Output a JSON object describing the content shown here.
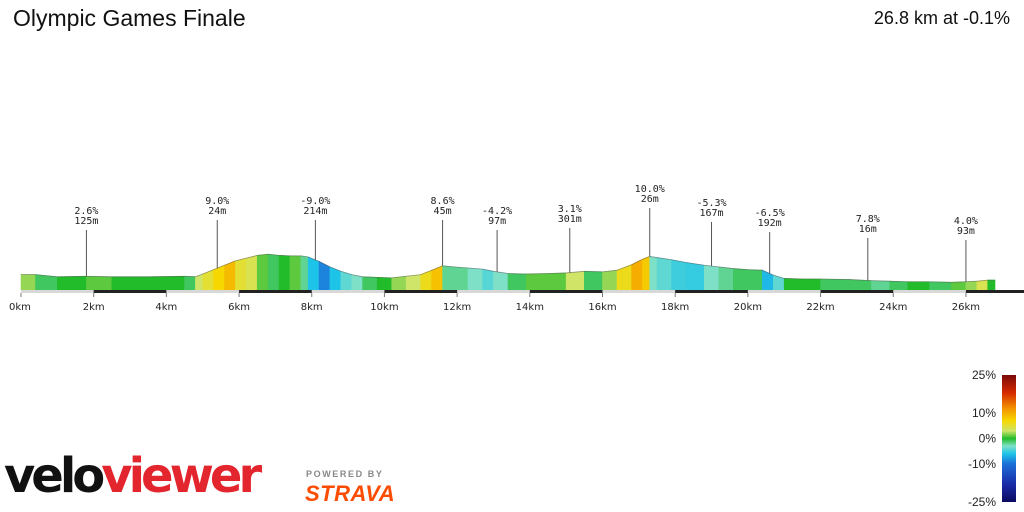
{
  "header": {
    "title": "Olympic Games Finale",
    "summary": "26.8 km at -0.1%"
  },
  "chart_data": {
    "type": "area",
    "title": "Olympic Games Finale",
    "xunit": "km",
    "xlim": [
      0,
      26.8
    ],
    "x_ticks": [
      "0km",
      "2km",
      "4km",
      "6km",
      "8km",
      "10km",
      "12km",
      "14km",
      "16km",
      "18km",
      "20km",
      "22km",
      "24km",
      "26km"
    ],
    "x_tick_values": [
      0,
      2,
      4,
      6,
      8,
      10,
      12,
      14,
      16,
      18,
      20,
      22,
      24,
      26
    ],
    "color_scale": "gradient (%)",
    "profile": [
      {
        "x": 0.0,
        "y": 28
      },
      {
        "x": 0.4,
        "y": 28
      },
      {
        "x": 1.0,
        "y": 24
      },
      {
        "x": 1.8,
        "y": 25
      },
      {
        "x": 2.5,
        "y": 24
      },
      {
        "x": 3.5,
        "y": 24
      },
      {
        "x": 4.5,
        "y": 25
      },
      {
        "x": 4.8,
        "y": 24
      },
      {
        "x": 5.0,
        "y": 29
      },
      {
        "x": 5.3,
        "y": 37
      },
      {
        "x": 5.6,
        "y": 45
      },
      {
        "x": 5.9,
        "y": 53
      },
      {
        "x": 6.2,
        "y": 58
      },
      {
        "x": 6.5,
        "y": 63
      },
      {
        "x": 6.8,
        "y": 65
      },
      {
        "x": 7.1,
        "y": 63
      },
      {
        "x": 7.4,
        "y": 62
      },
      {
        "x": 7.7,
        "y": 62
      },
      {
        "x": 7.9,
        "y": 60
      },
      {
        "x": 8.2,
        "y": 52
      },
      {
        "x": 8.5,
        "y": 42
      },
      {
        "x": 8.8,
        "y": 34
      },
      {
        "x": 9.1,
        "y": 28
      },
      {
        "x": 9.4,
        "y": 24
      },
      {
        "x": 9.8,
        "y": 23
      },
      {
        "x": 10.2,
        "y": 22
      },
      {
        "x": 10.6,
        "y": 25
      },
      {
        "x": 11.0,
        "y": 28
      },
      {
        "x": 11.3,
        "y": 36
      },
      {
        "x": 11.6,
        "y": 44
      },
      {
        "x": 11.9,
        "y": 42
      },
      {
        "x": 12.3,
        "y": 40
      },
      {
        "x": 12.7,
        "y": 38
      },
      {
        "x": 13.0,
        "y": 34
      },
      {
        "x": 13.4,
        "y": 30
      },
      {
        "x": 13.9,
        "y": 29
      },
      {
        "x": 14.5,
        "y": 30
      },
      {
        "x": 15.0,
        "y": 31
      },
      {
        "x": 15.5,
        "y": 34
      },
      {
        "x": 16.0,
        "y": 33
      },
      {
        "x": 16.4,
        "y": 36
      },
      {
        "x": 16.8,
        "y": 46
      },
      {
        "x": 17.1,
        "y": 56
      },
      {
        "x": 17.3,
        "y": 61
      },
      {
        "x": 17.5,
        "y": 59
      },
      {
        "x": 17.9,
        "y": 55
      },
      {
        "x": 18.3,
        "y": 50
      },
      {
        "x": 18.8,
        "y": 45
      },
      {
        "x": 19.2,
        "y": 42
      },
      {
        "x": 19.6,
        "y": 39
      },
      {
        "x": 20.0,
        "y": 37
      },
      {
        "x": 20.4,
        "y": 36
      },
      {
        "x": 20.7,
        "y": 27
      },
      {
        "x": 21.0,
        "y": 21
      },
      {
        "x": 21.5,
        "y": 20
      },
      {
        "x": 22.0,
        "y": 20
      },
      {
        "x": 22.8,
        "y": 19
      },
      {
        "x": 23.4,
        "y": 17
      },
      {
        "x": 23.9,
        "y": 16
      },
      {
        "x": 24.4,
        "y": 15
      },
      {
        "x": 25.0,
        "y": 15
      },
      {
        "x": 25.6,
        "y": 14
      },
      {
        "x": 26.0,
        "y": 15
      },
      {
        "x": 26.3,
        "y": 16
      },
      {
        "x": 26.6,
        "y": 18
      },
      {
        "x": 26.8,
        "y": 18
      }
    ],
    "segments": [
      {
        "from": 0.0,
        "to": 0.4,
        "gradient": 2
      },
      {
        "from": 0.4,
        "to": 1.0,
        "gradient": -1
      },
      {
        "from": 1.0,
        "to": 1.8,
        "gradient": 0
      },
      {
        "from": 1.8,
        "to": 2.5,
        "gradient": 1
      },
      {
        "from": 2.5,
        "to": 3.5,
        "gradient": 0
      },
      {
        "from": 3.5,
        "to": 4.5,
        "gradient": 0
      },
      {
        "from": 4.5,
        "to": 4.8,
        "gradient": -1
      },
      {
        "from": 4.8,
        "to": 5.0,
        "gradient": 3
      },
      {
        "from": 5.0,
        "to": 5.3,
        "gradient": 5
      },
      {
        "from": 5.3,
        "to": 5.6,
        "gradient": 7
      },
      {
        "from": 5.6,
        "to": 5.9,
        "gradient": 9
      },
      {
        "from": 5.9,
        "to": 6.2,
        "gradient": 5
      },
      {
        "from": 6.2,
        "to": 6.5,
        "gradient": 4
      },
      {
        "from": 6.5,
        "to": 6.8,
        "gradient": 1
      },
      {
        "from": 6.8,
        "to": 7.1,
        "gradient": -1
      },
      {
        "from": 7.1,
        "to": 7.4,
        "gradient": 0
      },
      {
        "from": 7.4,
        "to": 7.7,
        "gradient": 1
      },
      {
        "from": 7.7,
        "to": 7.9,
        "gradient": -2
      },
      {
        "from": 7.9,
        "to": 8.2,
        "gradient": -6
      },
      {
        "from": 8.2,
        "to": 8.5,
        "gradient": -9
      },
      {
        "from": 8.5,
        "to": 8.8,
        "gradient": -6
      },
      {
        "from": 8.8,
        "to": 9.1,
        "gradient": -4
      },
      {
        "from": 9.1,
        "to": 9.4,
        "gradient": -3
      },
      {
        "from": 9.4,
        "to": 9.8,
        "gradient": -1
      },
      {
        "from": 9.8,
        "to": 10.2,
        "gradient": 0
      },
      {
        "from": 10.2,
        "to": 10.6,
        "gradient": 2
      },
      {
        "from": 10.6,
        "to": 11.0,
        "gradient": 3
      },
      {
        "from": 11.0,
        "to": 11.3,
        "gradient": 6
      },
      {
        "from": 11.3,
        "to": 11.6,
        "gradient": 8.6
      },
      {
        "from": 11.6,
        "to": 11.9,
        "gradient": -2
      },
      {
        "from": 11.9,
        "to": 12.3,
        "gradient": -2
      },
      {
        "from": 12.3,
        "to": 12.7,
        "gradient": -3
      },
      {
        "from": 12.7,
        "to": 13.0,
        "gradient": -4.2
      },
      {
        "from": 13.0,
        "to": 13.4,
        "gradient": -3
      },
      {
        "from": 13.4,
        "to": 13.9,
        "gradient": -1
      },
      {
        "from": 13.9,
        "to": 14.5,
        "gradient": 1
      },
      {
        "from": 14.5,
        "to": 15.0,
        "gradient": 1
      },
      {
        "from": 15.0,
        "to": 15.5,
        "gradient": 3.1
      },
      {
        "from": 15.5,
        "to": 16.0,
        "gradient": -1
      },
      {
        "from": 16.0,
        "to": 16.4,
        "gradient": 2
      },
      {
        "from": 16.4,
        "to": 16.8,
        "gradient": 6
      },
      {
        "from": 16.8,
        "to": 17.1,
        "gradient": 10
      },
      {
        "from": 17.1,
        "to": 17.3,
        "gradient": 8
      },
      {
        "from": 17.3,
        "to": 17.5,
        "gradient": -3
      },
      {
        "from": 17.5,
        "to": 17.9,
        "gradient": -4
      },
      {
        "from": 17.9,
        "to": 18.3,
        "gradient": -5
      },
      {
        "from": 18.3,
        "to": 18.8,
        "gradient": -5.3
      },
      {
        "from": 18.8,
        "to": 19.2,
        "gradient": -3
      },
      {
        "from": 19.2,
        "to": 19.6,
        "gradient": -2
      },
      {
        "from": 19.6,
        "to": 20.0,
        "gradient": -1
      },
      {
        "from": 20.0,
        "to": 20.4,
        "gradient": -1
      },
      {
        "from": 20.4,
        "to": 20.7,
        "gradient": -6.5
      },
      {
        "from": 20.7,
        "to": 21.0,
        "gradient": -4
      },
      {
        "from": 21.0,
        "to": 21.5,
        "gradient": 0
      },
      {
        "from": 21.5,
        "to": 22.0,
        "gradient": 0
      },
      {
        "from": 22.0,
        "to": 22.8,
        "gradient": -1
      },
      {
        "from": 22.8,
        "to": 23.4,
        "gradient": -1
      },
      {
        "from": 23.4,
        "to": 23.9,
        "gradient": -2
      },
      {
        "from": 23.9,
        "to": 24.4,
        "gradient": -1
      },
      {
        "from": 24.4,
        "to": 25.0,
        "gradient": 0
      },
      {
        "from": 25.0,
        "to": 25.6,
        "gradient": -1
      },
      {
        "from": 25.6,
        "to": 26.0,
        "gradient": 1
      },
      {
        "from": 26.0,
        "to": 26.3,
        "gradient": 2
      },
      {
        "from": 26.3,
        "to": 26.6,
        "gradient": 4
      },
      {
        "from": 26.6,
        "to": 26.8,
        "gradient": 0
      }
    ],
    "annotations": [
      {
        "x": 1.8,
        "grade": "2.6%",
        "length": "125m"
      },
      {
        "x": 5.4,
        "grade": "9.0%",
        "length": "24m"
      },
      {
        "x": 8.1,
        "grade": "-9.0%",
        "length": "214m"
      },
      {
        "x": 11.6,
        "grade": "8.6%",
        "length": "45m"
      },
      {
        "x": 13.1,
        "grade": "-4.2%",
        "length": "97m"
      },
      {
        "x": 15.1,
        "grade": "3.1%",
        "length": "301m"
      },
      {
        "x": 17.3,
        "grade": "10.0%",
        "length": "26m"
      },
      {
        "x": 19.0,
        "grade": "-5.3%",
        "length": "167m"
      },
      {
        "x": 20.6,
        "grade": "-6.5%",
        "length": "192m"
      },
      {
        "x": 23.3,
        "grade": "7.8%",
        "length": "16m"
      },
      {
        "x": 26.0,
        "grade": "4.0%",
        "length": "93m"
      }
    ],
    "legend": {
      "labels": [
        "25%",
        "10%",
        "0%",
        "-10%",
        "-25%"
      ],
      "values": [
        25,
        10,
        0,
        -10,
        -25
      ],
      "colors": [
        {
          "value": 25,
          "color": "#7a0a0a"
        },
        {
          "value": 18,
          "color": "#d42a00"
        },
        {
          "value": 12,
          "color": "#f39000"
        },
        {
          "value": 7,
          "color": "#f6d800"
        },
        {
          "value": 3,
          "color": "#cfe56a"
        },
        {
          "value": 0,
          "color": "#22bb2a"
        },
        {
          "value": -3,
          "color": "#7fe0c8"
        },
        {
          "value": -6,
          "color": "#1ec4e8"
        },
        {
          "value": -10,
          "color": "#1b6fd8"
        },
        {
          "value": -18,
          "color": "#1a2ba8"
        },
        {
          "value": -25,
          "color": "#0a0a60"
        }
      ]
    }
  },
  "branding": {
    "logo_part1": "velo",
    "logo_part2": "viewer",
    "powered_by": "POWERED BY",
    "strava": "STRAVA"
  }
}
